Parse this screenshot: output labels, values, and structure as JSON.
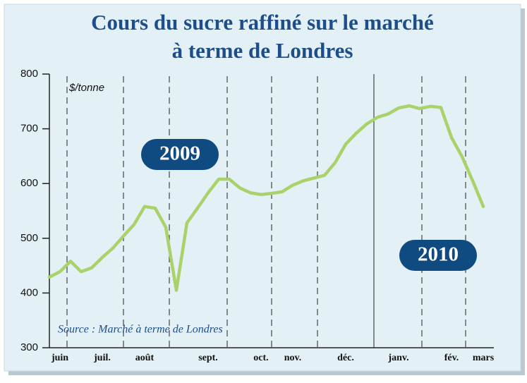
{
  "chart_data": {
    "type": "line",
    "title": "Cours du sucre raffiné sur le marché",
    "subtitle": "à terme de Londres",
    "y_label": "$/tonne",
    "source": "Source : Marché à terme de Londres",
    "annotations": [
      "2009",
      "2010"
    ],
    "categories": [
      null,
      "juin",
      null,
      null,
      null,
      "juil.",
      null,
      null,
      null,
      "août",
      null,
      null,
      null,
      null,
      null,
      "sept.",
      null,
      null,
      null,
      null,
      "oct.",
      null,
      null,
      "nov.",
      null,
      null,
      null,
      null,
      "déc.",
      null,
      null,
      null,
      null,
      "janv.",
      null,
      null,
      null,
      null,
      "fév.",
      null,
      null,
      "mars"
    ],
    "series": [
      {
        "name": "Cours",
        "color": "#a9d26b",
        "values": [
          429,
          439,
          458,
          439,
          446,
          465,
          482,
          504,
          525,
          558,
          555,
          520,
          405,
          528,
          555,
          583,
          608,
          608,
          592,
          583,
          580,
          582,
          585,
          597,
          605,
          610,
          615,
          638,
          672,
          692,
          709,
          721,
          727,
          738,
          742,
          737,
          741,
          739,
          684,
          649,
          605,
          558
        ]
      }
    ],
    "ylim": [
      300,
      800
    ],
    "yticks": [
      300,
      400,
      500,
      600,
      700,
      800
    ],
    "grid": false
  }
}
